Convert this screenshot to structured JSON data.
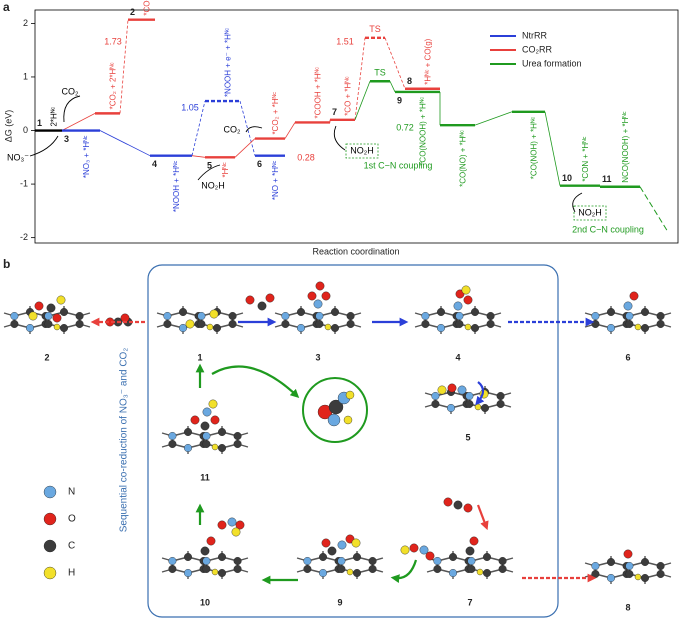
{
  "panel_labels": [
    "a",
    "b"
  ],
  "chart_data": {
    "type": "energy-profile",
    "ylabel": "ΔG (eV)",
    "xlabel": "Reaction coordination",
    "ylim": [
      -2.1,
      2.25
    ],
    "yticks": [
      -2,
      -1,
      0,
      1,
      2
    ],
    "legend_position": "upper right",
    "base_color": "#000000",
    "series": [
      {
        "name": "NtrRR",
        "color": "#2b3fd8"
      },
      {
        "name": "CO₂RR",
        "color": "#e8403c"
      },
      {
        "name": "Urea formation",
        "color": "#1f9a1f"
      }
    ],
    "levels": [
      {
        "number": "1",
        "species": "2*Hᴺᶜ",
        "value": 0
      },
      {
        "number": "3",
        "species": "*NO₃ + *Hᴺᶜ",
        "value": 0,
        "series": 0
      },
      {
        "species": "*CO₂ + 2*Hᴺᶜ",
        "value": 0.32,
        "series": 1
      },
      {
        "number": "2",
        "species": "*COOH + 2*Hᴺᶜ",
        "value": 2.07,
        "series": 1
      },
      {
        "number": "4",
        "species": "*NOOH + *Hᴺᶜ",
        "value": -0.47,
        "series": 0
      },
      {
        "species": "*NOOH + e⁻ + *Hᴺᶜ",
        "value": 0.55,
        "series": 0,
        "dashed": true
      },
      {
        "number": "5",
        "species": "*Hᴺᶜ",
        "value": -0.5,
        "series": 1
      },
      {
        "number": "6",
        "species": "*NO + *Hᴺᶜ",
        "value": -0.47,
        "series": 0
      },
      {
        "species": "*CO₂ + *Hᴺᶜ",
        "value": -0.15,
        "series": 1
      },
      {
        "species": "*COOH + *Hᴺᶜ",
        "value": 0.15,
        "series": 1
      },
      {
        "number": "7",
        "species": "*CO + *Hᴺᶜ",
        "value": 0.2,
        "series": 1
      },
      {
        "species": "TS",
        "value": 1.73,
        "series": 1,
        "dashed": true
      },
      {
        "species": "TS",
        "value": 0.92,
        "series": 2
      },
      {
        "number": "8",
        "species": "*Hᴺᶜ + CO(g)",
        "value": 0.78,
        "series": 1
      },
      {
        "number": "9",
        "species": "*CO(NOOH) + *Hᴺᶜ",
        "value": 0.72,
        "series": 2
      },
      {
        "species": "*CO(NO) + *Hᴺᶜ",
        "value": 0.1,
        "series": 2
      },
      {
        "species": "*CO(NOH) + *Hᴺᶜ",
        "value": 0.35,
        "series": 2
      },
      {
        "number": "10",
        "species": "*CON + *Hᴺᶜ",
        "value": -1.03,
        "series": 2
      },
      {
        "number": "11",
        "species": "NCO(NOOH) + *Hᴺᶜ",
        "value": -1.05,
        "series": 2
      }
    ],
    "barriers": [
      {
        "value": 1.73,
        "series": 1
      },
      {
        "value": 1.05,
        "series": 0
      },
      {
        "value": 0.28,
        "series": 1
      },
      {
        "value": 1.51,
        "series": 1
      },
      {
        "value": 0.72,
        "series": 2
      }
    ],
    "annotations": [
      "CO₂",
      "NO₃⁻",
      "NO₂H",
      "CO₂",
      "NO₂H",
      "1st C−N coupling",
      "NO₂H",
      "2nd C−N coupling"
    ]
  },
  "panel_b": {
    "caption": "Sequential co-reduction of NO₃⁻ and CO₂",
    "structures": [
      "2",
      "1",
      "3",
      "4",
      "6",
      "11",
      "5",
      "10",
      "9",
      "7",
      "8"
    ],
    "legend": [
      {
        "name": "N",
        "color": "#6aa8e0"
      },
      {
        "name": "O",
        "color": "#e0241c"
      },
      {
        "name": "C",
        "color": "#3c3c3c"
      },
      {
        "name": "H",
        "color": "#f2e02a"
      }
    ]
  }
}
